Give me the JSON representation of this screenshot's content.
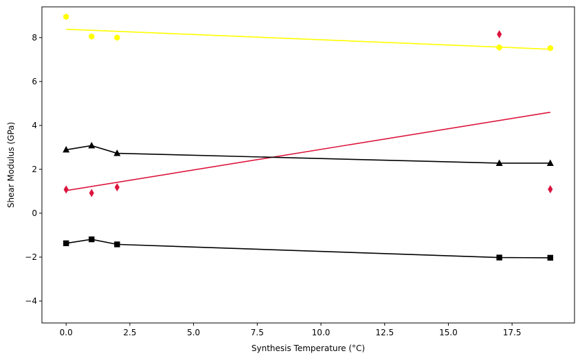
{
  "chart_data": {
    "type": "scatter",
    "title": "",
    "xlabel": "Synthesis Temperature (°C)",
    "ylabel": "Shear Modulus (GPa)",
    "xlim": [
      -0.95,
      19.95
    ],
    "ylim": [
      -5.0,
      9.4
    ],
    "xticks": [
      0.0,
      2.5,
      5.0,
      7.5,
      10.0,
      12.5,
      15.0,
      17.5
    ],
    "xtick_labels": [
      "0.0",
      "2.5",
      "5.0",
      "7.5",
      "10.0",
      "12.5",
      "15.0",
      "17.5"
    ],
    "yticks": [
      -4,
      -2,
      0,
      2,
      4,
      6,
      8
    ],
    "ytick_labels": [
      "−4",
      "−2",
      "0",
      "2",
      "4",
      "6",
      "8"
    ],
    "grid": false,
    "legend": "none",
    "series": [
      {
        "kind": "scatter",
        "marker": "hexagon",
        "color": "#ffff00",
        "x": [
          0,
          1,
          2,
          17,
          19
        ],
        "y": [
          8.95,
          8.05,
          8.0,
          7.55,
          7.52
        ]
      },
      {
        "kind": "line",
        "color": "#ffff00",
        "x": [
          0,
          19
        ],
        "y": [
          8.38,
          7.47
        ]
      },
      {
        "kind": "scatter",
        "marker": "thin-diamond",
        "color": "#dc143c",
        "x": [
          0,
          1,
          2,
          17,
          19
        ],
        "y": [
          1.08,
          0.92,
          1.18,
          8.15,
          1.09
        ]
      },
      {
        "kind": "line",
        "color": "#dc143c",
        "x": [
          0,
          19
        ],
        "y": [
          1.03,
          4.6
        ]
      },
      {
        "kind": "line+marker",
        "marker": "triangle",
        "color": "#000000",
        "x": [
          0,
          1,
          2,
          17,
          19
        ],
        "y": [
          2.89,
          3.08,
          2.73,
          2.28,
          2.28
        ]
      },
      {
        "kind": "line+marker",
        "marker": "square",
        "color": "#000000",
        "x": [
          0,
          1,
          2,
          17,
          19
        ],
        "y": [
          -1.37,
          -1.19,
          -1.42,
          -2.02,
          -2.03
        ]
      }
    ]
  }
}
